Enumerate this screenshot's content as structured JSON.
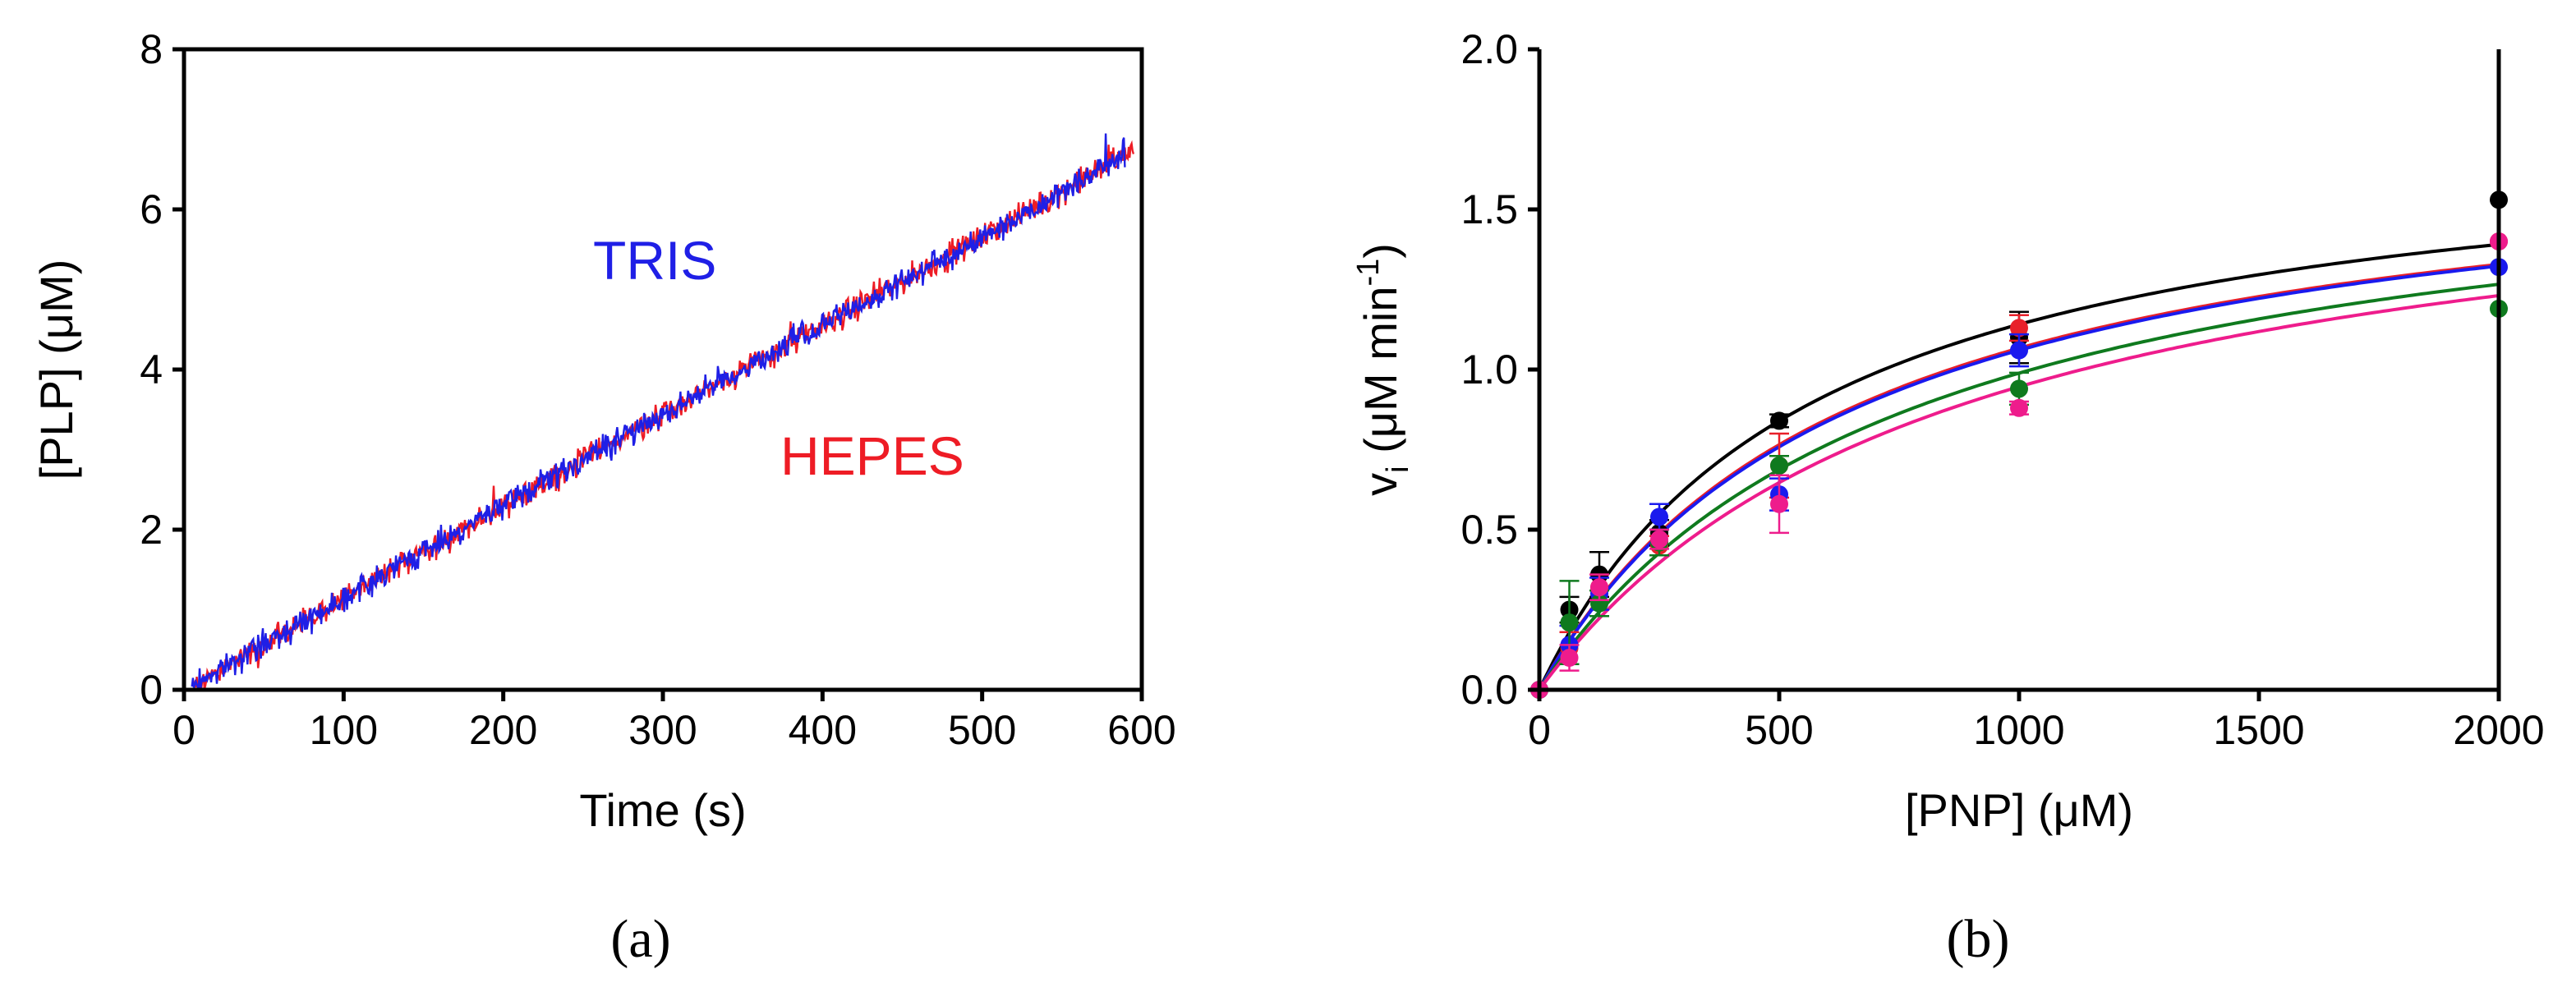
{
  "chart_data": [
    {
      "type": "line",
      "panel_label": "(a)",
      "xlabel": "Time (s)",
      "ylabel": "[PLP] (μM)",
      "xlim": [
        0,
        600
      ],
      "ylim": [
        0,
        8
      ],
      "xticks": [
        "0",
        "100",
        "200",
        "300",
        "400",
        "500",
        "600"
      ],
      "yticks": [
        "0",
        "2",
        "4",
        "6",
        "8"
      ],
      "grid": false,
      "series": [
        {
          "name": "TRIS",
          "color": "#1f1fe6",
          "x": [
            5,
            100,
            200,
            300,
            400,
            500,
            590
          ],
          "y": [
            0.05,
            1.15,
            2.3,
            3.45,
            4.55,
            5.65,
            6.7
          ]
        },
        {
          "name": "HEPES",
          "color": "#ee1c25",
          "x": [
            5,
            100,
            200,
            300,
            400,
            500,
            595
          ],
          "y": [
            0.05,
            1.15,
            2.3,
            3.45,
            4.55,
            5.65,
            6.75
          ]
        }
      ],
      "annotations": [
        {
          "text": "TRIS",
          "color": "#1f1fe6"
        },
        {
          "text": "HEPES",
          "color": "#ee1c25"
        }
      ]
    },
    {
      "type": "scatter",
      "panel_label": "(b)",
      "xlabel": "[PNP] (μM)",
      "ylabel": "v",
      "ylabel_sub": "i",
      "ylabel_rest": " (μM min",
      "ylabel_sup": "-1",
      "ylabel_end": ")",
      "xlim": [
        0,
        2000
      ],
      "ylim": [
        0,
        2.0
      ],
      "xticks": [
        "0",
        "500",
        "1000",
        "1500",
        "2000"
      ],
      "yticks": [
        "0.0",
        "0.5",
        "1.0",
        "1.5",
        "2.0"
      ],
      "grid": false,
      "x": [
        0,
        62.5,
        125,
        250,
        500,
        1000,
        2000
      ],
      "series": [
        {
          "name": "black",
          "color": "#000000",
          "values": [
            0,
            0.25,
            0.36,
            0.49,
            0.84,
            1.1,
            1.53
          ],
          "errors": [
            0,
            0.04,
            0.07,
            0.04,
            0.02,
            0.08,
            0
          ],
          "fit": {
            "vmax": 1.78,
            "km": 560
          }
        },
        {
          "name": "red",
          "color": "#e8202a",
          "values": [
            0,
            0.13,
            0.32,
            0.45,
            0.7,
            1.13,
            1.4
          ],
          "errors": [
            0,
            0.05,
            0.04,
            0.03,
            0.1,
            0.04,
            0
          ],
          "fit": {
            "vmax": 1.76,
            "km": 650
          }
        },
        {
          "name": "blue",
          "color": "#1a1aee",
          "values": [
            0,
            0.14,
            0.3,
            0.54,
            0.61,
            1.06,
            1.32
          ],
          "errors": [
            0,
            0.06,
            0.05,
            0.04,
            0.05,
            0.05,
            0
          ],
          "fit": {
            "vmax": 1.76,
            "km": 660
          }
        },
        {
          "name": "green",
          "color": "#0f7a1e",
          "values": [
            0,
            0.21,
            0.27,
            0.46,
            0.7,
            0.94,
            1.19
          ],
          "errors": [
            0,
            0.13,
            0.04,
            0.04,
            0.03,
            0.05,
            0
          ],
          "fit": {
            "vmax": 1.76,
            "km": 780
          }
        },
        {
          "name": "magenta",
          "color": "#ee1c8c",
          "values": [
            0,
            0.1,
            0.32,
            0.47,
            0.58,
            0.88,
            1.4
          ],
          "errors": [
            0,
            0.04,
            0.04,
            0.03,
            0.09,
            0.02,
            0
          ],
          "fit": {
            "vmax": 1.76,
            "km": 860
          }
        }
      ]
    }
  ]
}
